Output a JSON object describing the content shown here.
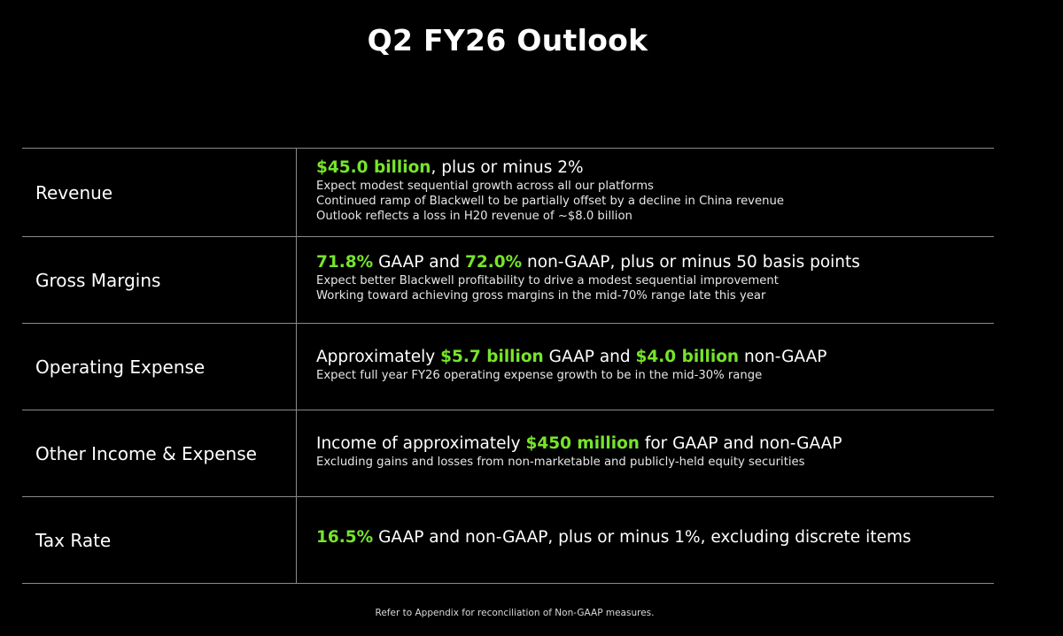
{
  "title": "Q2 FY26 Outlook",
  "rows": [
    {
      "label": "Revenue",
      "headline": [
        {
          "text": "$45.0 billion",
          "hl": true
        },
        {
          "text": ", plus or minus 2%",
          "hl": false
        }
      ],
      "notes": [
        "Expect modest sequential growth across all our platforms",
        "Continued ramp of Blackwell to be partially offset by a decline in China revenue",
        "Outlook reflects a loss in H20 revenue of ~$8.0 billion"
      ]
    },
    {
      "label": "Gross Margins",
      "headline": [
        {
          "text": "71.8%",
          "hl": true
        },
        {
          "text": " GAAP and ",
          "hl": false
        },
        {
          "text": "72.0%",
          "hl": true
        },
        {
          "text": " non-GAAP, plus or minus 50 basis points",
          "hl": false
        }
      ],
      "notes": [
        "Expect better Blackwell profitability to drive a modest sequential improvement",
        "Working toward achieving gross margins in the mid-70% range late this year"
      ]
    },
    {
      "label": "Operating Expense",
      "headline": [
        {
          "text": "Approximately ",
          "hl": false
        },
        {
          "text": "$5.7 billion",
          "hl": true
        },
        {
          "text": " GAAP and ",
          "hl": false
        },
        {
          "text": "$4.0 billion",
          "hl": true
        },
        {
          "text": " non-GAAP",
          "hl": false
        }
      ],
      "notes": [
        "Expect full year FY26 operating expense growth to be in the mid-30% range"
      ]
    },
    {
      "label": "Other Income & Expense",
      "headline": [
        {
          "text": "Income of approximately ",
          "hl": false
        },
        {
          "text": "$450 million",
          "hl": true
        },
        {
          "text": " for GAAP and non-GAAP",
          "hl": false
        }
      ],
      "notes": [
        "Excluding gains and losses from non-marketable and publicly-held equity securities"
      ]
    },
    {
      "label": "Tax Rate",
      "headline": [
        {
          "text": "16.5%",
          "hl": true
        },
        {
          "text": " GAAP and non-GAAP, plus or minus 1%, excluding discrete items",
          "hl": false
        }
      ],
      "notes": []
    }
  ],
  "footer": "Refer to Appendix for reconciliation of Non-GAAP measures.",
  "colors": {
    "background": "#000000",
    "highlight": "#76e52a",
    "text": "#ffffff",
    "divider": "#8a8a8a"
  }
}
